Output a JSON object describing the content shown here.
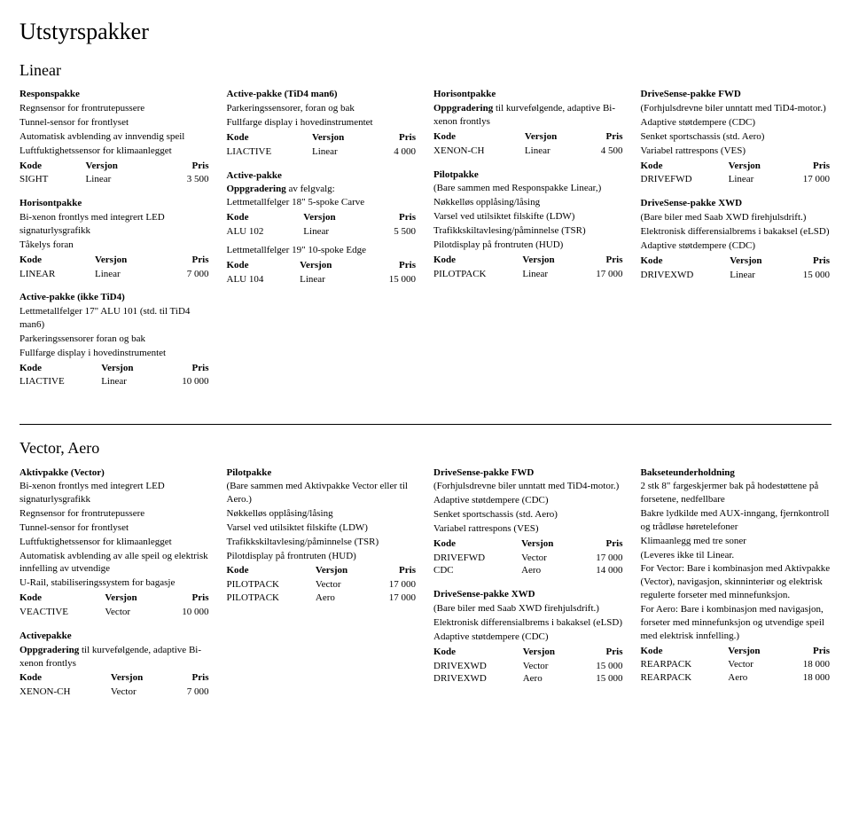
{
  "page_title": "Utstyrspakker",
  "headers": {
    "kode": "Kode",
    "versjon": "Versjon",
    "pris": "Pris"
  },
  "section_linear": {
    "title": "Linear",
    "col1": {
      "responspakke": {
        "title": "Responspakke",
        "lines": [
          "Regnsensor for frontrutepussere",
          "Tunnel-sensor for frontlyset",
          "Automatisk avblending av innvendig speil",
          "Luftfuktighetssensor for klimaanlegget"
        ],
        "row": {
          "kode": "SIGHT",
          "versjon": "Linear",
          "pris": "3 500"
        }
      },
      "horisontpakke": {
        "title": "Horisontpakke",
        "lines": [
          "Bi-xenon frontlys med integrert LED signaturlysgrafikk",
          "Tåkelys foran"
        ],
        "row": {
          "kode": "LINEAR",
          "versjon": "Linear",
          "pris": "7 000"
        }
      },
      "activepakke_ikke": {
        "title": "Active-pakke (ikke TiD4)",
        "lines": [
          "Lettmetallfelger 17\" ALU 101 (std. til TiD4 man6)",
          "Parkeringssensorer foran og bak",
          "Fullfarge display i hovedinstrumentet"
        ],
        "row": {
          "kode": "LIACTIVE",
          "versjon": "Linear",
          "pris": "10 000"
        }
      }
    },
    "col2": {
      "activepakke_tid4": {
        "title": "Active-pakke (TiD4 man6)",
        "lines": [
          "Parkeringssensorer, foran og bak",
          "Fullfarge display i hovedinstrumentet"
        ],
        "row": {
          "kode": "LIACTIVE",
          "versjon": "Linear",
          "pris": "4 000"
        }
      },
      "activepakke_upg": {
        "title": "Active-pakke",
        "sub": "Oppgradering",
        "subtext": " av felgvalg:",
        "lines": [
          "Lettmetallfelger 18\" 5-spoke Carve"
        ],
        "row": {
          "kode": "ALU 102",
          "versjon": "Linear",
          "pris": "5 500"
        },
        "lines2": [
          "Lettmetallfelger 19\" 10-spoke Edge"
        ],
        "row2": {
          "kode": "ALU 104",
          "versjon": "Linear",
          "pris": "15 000"
        }
      }
    },
    "col3": {
      "horisontpakke": {
        "title": "Horisontpakke",
        "sub": "Oppgradering",
        "subtext": " til kurvefølgende, adaptive Bi-xenon frontlys",
        "row": {
          "kode": "XENON-CH",
          "versjon": "Linear",
          "pris": "4 500"
        }
      },
      "pilotpakke": {
        "title": "Pilotpakke",
        "lines": [
          "(Bare sammen med Responspakke Linear,)",
          "Nøkkelløs opplåsing/låsing",
          "Varsel ved utilsiktet filskifte (LDW)",
          "Trafikkskiltavlesing/påminnelse (TSR)",
          "Pilotdisplay på frontruten (HUD)"
        ],
        "row": {
          "kode": "PILOTPACK",
          "versjon": "Linear",
          "pris": "17 000"
        }
      }
    },
    "col4": {
      "drivesense_fwd": {
        "title": "DriveSense-pakke FWD",
        "lines": [
          "(Forhjulsdrevne biler unntatt med TiD4-motor.)",
          "Adaptive støtdempere (CDC)",
          "Senket sportschassis (std. Aero)",
          "Variabel rattrespons (VES)"
        ],
        "row": {
          "kode": "DRIVEFWD",
          "versjon": "Linear",
          "pris": "17 000"
        }
      },
      "drivesense_xwd": {
        "title": "DriveSense-pakke XWD",
        "lines": [
          "(Bare biler med Saab XWD firehjulsdrift.)",
          "Elektronisk differensialbrems i bakaksel (eLSD)",
          "Adaptive støtdempere (CDC)"
        ],
        "row": {
          "kode": "DRIVEXWD",
          "versjon": "Linear",
          "pris": "15 000"
        }
      }
    }
  },
  "section_vector": {
    "title": "Vector, Aero",
    "col1": {
      "aktivpakke": {
        "title": "Aktivpakke (Vector)",
        "lines": [
          "Bi-xenon frontlys med integrert LED signaturlysgrafikk",
          "Regnsensor for frontrutepussere",
          "Tunnel-sensor for frontlyset",
          "Luftfuktighetssensor for klimaanlegget",
          "Automatisk avblending av alle speil og elektrisk innfelling av utvendige",
          "U-Rail, stabiliseringssystem for bagasje"
        ],
        "row": {
          "kode": "VEACTIVE",
          "versjon": "Vector",
          "pris": "10 000"
        }
      },
      "activepakke": {
        "title": "Activepakke",
        "sub": "Oppgradering",
        "subtext": " til kurvefølgende, adaptive Bi-xenon frontlys",
        "row": {
          "kode": "XENON-CH",
          "versjon": "Vector",
          "pris": "7 000"
        }
      }
    },
    "col2": {
      "pilotpakke": {
        "title": "Pilotpakke",
        "lines": [
          "(Bare sammen med Aktivpakke Vector eller til Aero.)",
          "Nøkkelløs opplåsing/låsing",
          "Varsel ved utilsiktet filskifte (LDW)",
          "Trafikkskiltavlesing/påminnelse (TSR)",
          "Pilotdisplay på frontruten (HUD)"
        ],
        "rows": [
          {
            "kode": "PILOTPACK",
            "versjon": "Vector",
            "pris": "17 000"
          },
          {
            "kode": "PILOTPACK",
            "versjon": "Aero",
            "pris": "17 000"
          }
        ]
      }
    },
    "col3": {
      "drivesense_fwd": {
        "title": "DriveSense-pakke FWD",
        "lines": [
          "(Forhjulsdrevne biler unntatt med TiD4-motor.)",
          "Adaptive støtdempere (CDC)",
          "Senket sportschassis (std. Aero)",
          "Variabel rattrespons (VES)"
        ],
        "rows": [
          {
            "kode": "DRIVEFWD",
            "versjon": "Vector",
            "pris": "17 000"
          },
          {
            "kode": "CDC",
            "versjon": "Aero",
            "pris": "14 000"
          }
        ]
      },
      "drivesense_xwd": {
        "title": "DriveSense-pakke XWD",
        "lines": [
          "(Bare biler med Saab XWD firehjulsdrift.)",
          "Elektronisk differensialbrems i bakaksel (eLSD)",
          "Adaptive støtdempere (CDC)"
        ],
        "rows": [
          {
            "kode": "DRIVEXWD",
            "versjon": "Vector",
            "pris": "15 000"
          },
          {
            "kode": "DRIVEXWD",
            "versjon": "Aero",
            "pris": "15 000"
          }
        ]
      }
    },
    "col4": {
      "baksete": {
        "title": "Bakseteunderholdning",
        "lines": [
          "2 stk 8\" fargeskjermer bak på hodestøttene på forsetene, nedfellbare",
          "Bakre lydkilde med AUX-inngang, fjernkontroll og trådløse høretelefoner",
          "Klimaanlegg med tre soner",
          "(Leveres ikke til Linear.",
          "For Vector: Bare i kombinasjon med Aktivpakke (Vector), navigasjon, skinninteriør og elektrisk regulerte forseter med minnefunksjon.",
          "For Aero: Bare i kombinasjon med navigasjon, forseter med minnefunksjon og utvendige speil med elektrisk innfelling.)"
        ],
        "rows": [
          {
            "kode": "REARPACK",
            "versjon": "Vector",
            "pris": "18 000"
          },
          {
            "kode": "REARPACK",
            "versjon": "Aero",
            "pris": "18 000"
          }
        ]
      }
    }
  }
}
